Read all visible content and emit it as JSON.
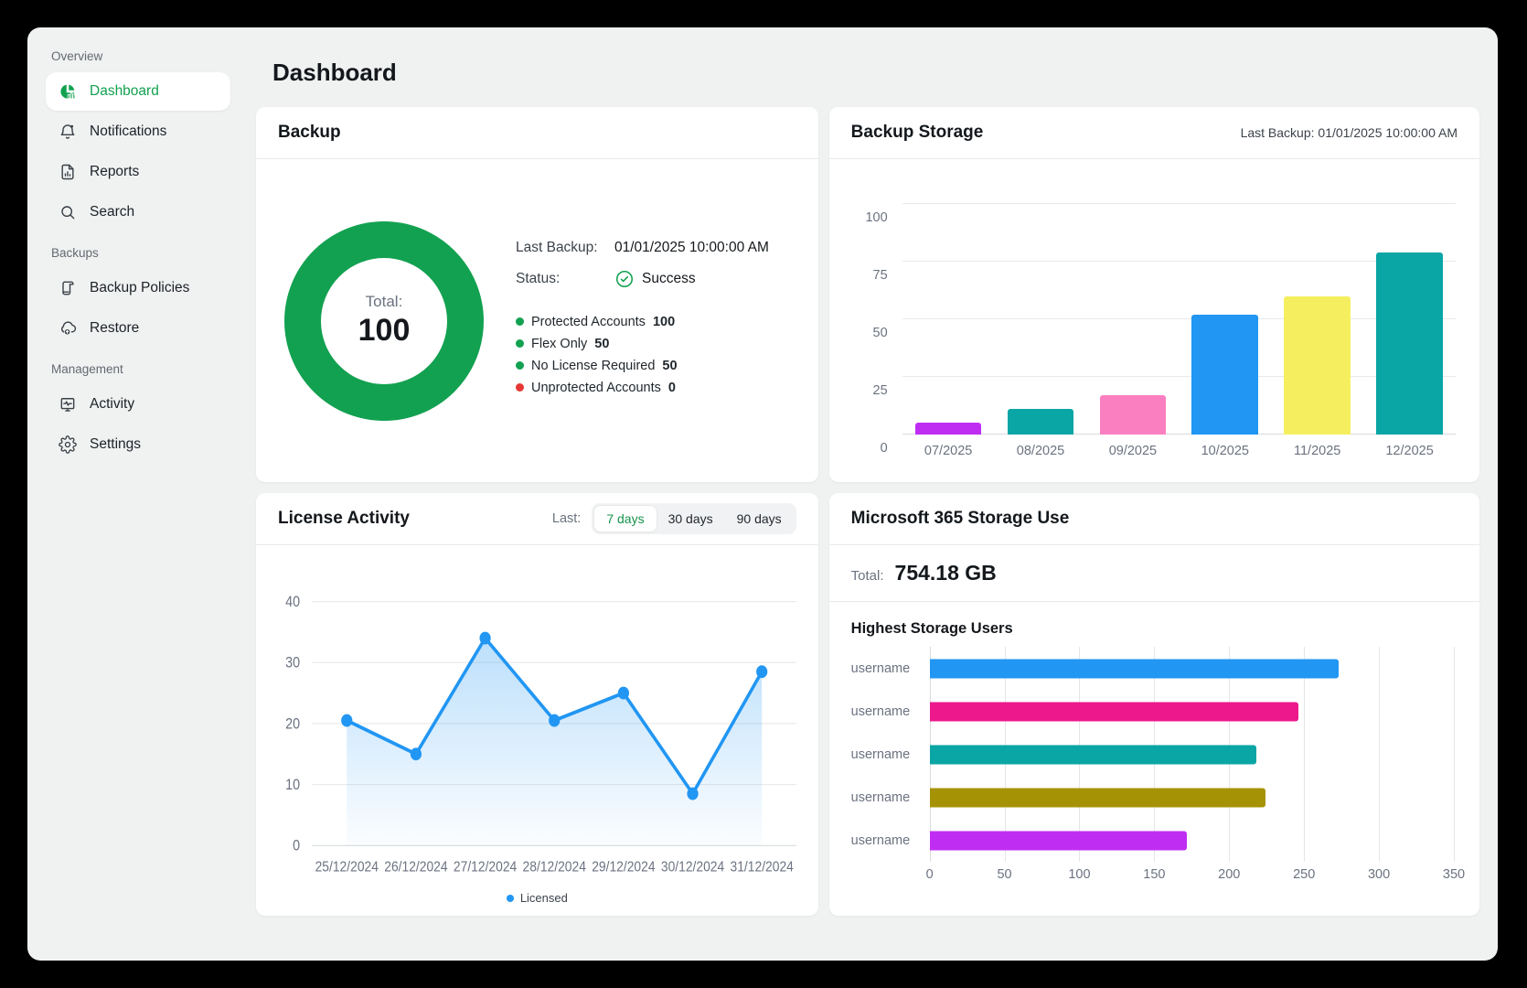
{
  "colors": {
    "green": "#12a150",
    "red": "#e53935",
    "blue": "#2196f3",
    "app_background": "#f0f1f1",
    "card_background": "#ffffff"
  },
  "sidebar": {
    "sections": [
      {
        "label": "Overview",
        "items": [
          {
            "label": "Dashboard",
            "icon": "pie-chart-icon",
            "active": true
          },
          {
            "label": "Notifications",
            "icon": "bell-icon",
            "active": false
          },
          {
            "label": "Reports",
            "icon": "report-icon",
            "active": false
          },
          {
            "label": "Search",
            "icon": "search-icon",
            "active": false
          }
        ]
      },
      {
        "label": "Backups",
        "items": [
          {
            "label": "Backup Policies",
            "icon": "policy-icon",
            "active": false
          },
          {
            "label": "Restore",
            "icon": "cloud-restore-icon",
            "active": false
          }
        ]
      },
      {
        "label": "Management",
        "items": [
          {
            "label": "Activity",
            "icon": "activity-icon",
            "active": false
          },
          {
            "label": "Settings",
            "icon": "gear-icon",
            "active": false
          }
        ]
      }
    ]
  },
  "page_title": "Dashboard",
  "backup_card": {
    "title": "Backup",
    "donut_center_label": "Total:",
    "donut_center_value": "100",
    "last_backup_label": "Last Backup:",
    "last_backup_value": "01/01/2025 10:00:00 AM",
    "status_label": "Status:",
    "status_value": "Success",
    "legend": [
      {
        "label": "Protected Accounts",
        "value": "100",
        "color": "#12a150"
      },
      {
        "label": "Flex Only",
        "value": "50",
        "color": "#12a150"
      },
      {
        "label": "No License Required",
        "value": "50",
        "color": "#12a150"
      },
      {
        "label": "Unprotected Accounts",
        "value": "0",
        "color": "#e53935"
      }
    ]
  },
  "backup_storage_card": {
    "title": "Backup Storage",
    "last_backup_note": "Last Backup: 01/01/2025 10:00:00 AM"
  },
  "license_activity_card": {
    "title": "License Activity",
    "filter_label": "Last:",
    "filters": [
      {
        "label": "7 days",
        "active": true
      },
      {
        "label": "30 days",
        "active": false
      },
      {
        "label": "90 days",
        "active": false
      }
    ],
    "legend_label": "Licensed"
  },
  "m365_card": {
    "title": "Microsoft 365 Storage Use",
    "total_label": "Total:",
    "total_value": "754.18 GB",
    "subtitle": "Highest Storage Users"
  },
  "chart_data": [
    {
      "id": "backup_donut",
      "type": "pie",
      "title": "Backup",
      "center_label": "Total:",
      "center_value": 100,
      "slices": [
        {
          "label": "Protected Accounts",
          "value": 100,
          "color": "#12a150"
        },
        {
          "label": "Flex Only",
          "value": 50,
          "color": "#12a150"
        },
        {
          "label": "No License Required",
          "value": 50,
          "color": "#12a150"
        },
        {
          "label": "Unprotected Accounts",
          "value": 0,
          "color": "#e53935"
        }
      ]
    },
    {
      "id": "backup_storage",
      "type": "bar",
      "title": "Backup Storage",
      "categories": [
        "07/2025",
        "08/2025",
        "09/2025",
        "10/2025",
        "11/2025",
        "12/2025"
      ],
      "values": [
        5,
        11,
        17,
        52,
        60,
        79
      ],
      "colors": [
        "#c02df2",
        "#0aa5a5",
        "#fa7fc1",
        "#2196f3",
        "#f5ef60",
        "#0aa5a5"
      ],
      "xlabel": "",
      "ylabel": "",
      "ylim": [
        0,
        100
      ],
      "yticks": [
        0,
        25,
        50,
        75,
        100
      ],
      "grid": "horizontal"
    },
    {
      "id": "license_activity",
      "type": "line",
      "title": "License Activity",
      "categories": [
        "25/12/2024",
        "26/12/2024",
        "27/12/2024",
        "28/12/2024",
        "29/12/2024",
        "30/12/2024",
        "31/12/2024"
      ],
      "series": [
        {
          "name": "Licensed",
          "color": "#2196f3",
          "values": [
            20.5,
            15,
            34,
            20.5,
            25,
            8.5,
            28.5
          ]
        }
      ],
      "xlabel": "",
      "ylabel": "",
      "ylim": [
        0,
        40
      ],
      "yticks": [
        0,
        10,
        20,
        30,
        40
      ],
      "area": true,
      "grid": "horizontal",
      "legend_position": "bottom"
    },
    {
      "id": "storage_users",
      "type": "bar",
      "orientation": "horizontal",
      "title": "Highest Storage Users",
      "categories": [
        "username",
        "username",
        "username",
        "username",
        "username"
      ],
      "values": [
        273,
        246,
        218,
        224,
        172
      ],
      "colors": [
        "#2196f3",
        "#ec188c",
        "#0aa5a5",
        "#a69305",
        "#c02df2"
      ],
      "xlabel": "",
      "ylabel": "",
      "xlim": [
        0,
        350
      ],
      "xticks": [
        0,
        50,
        100,
        150,
        200,
        250,
        300,
        350
      ],
      "grid": "vertical"
    }
  ]
}
